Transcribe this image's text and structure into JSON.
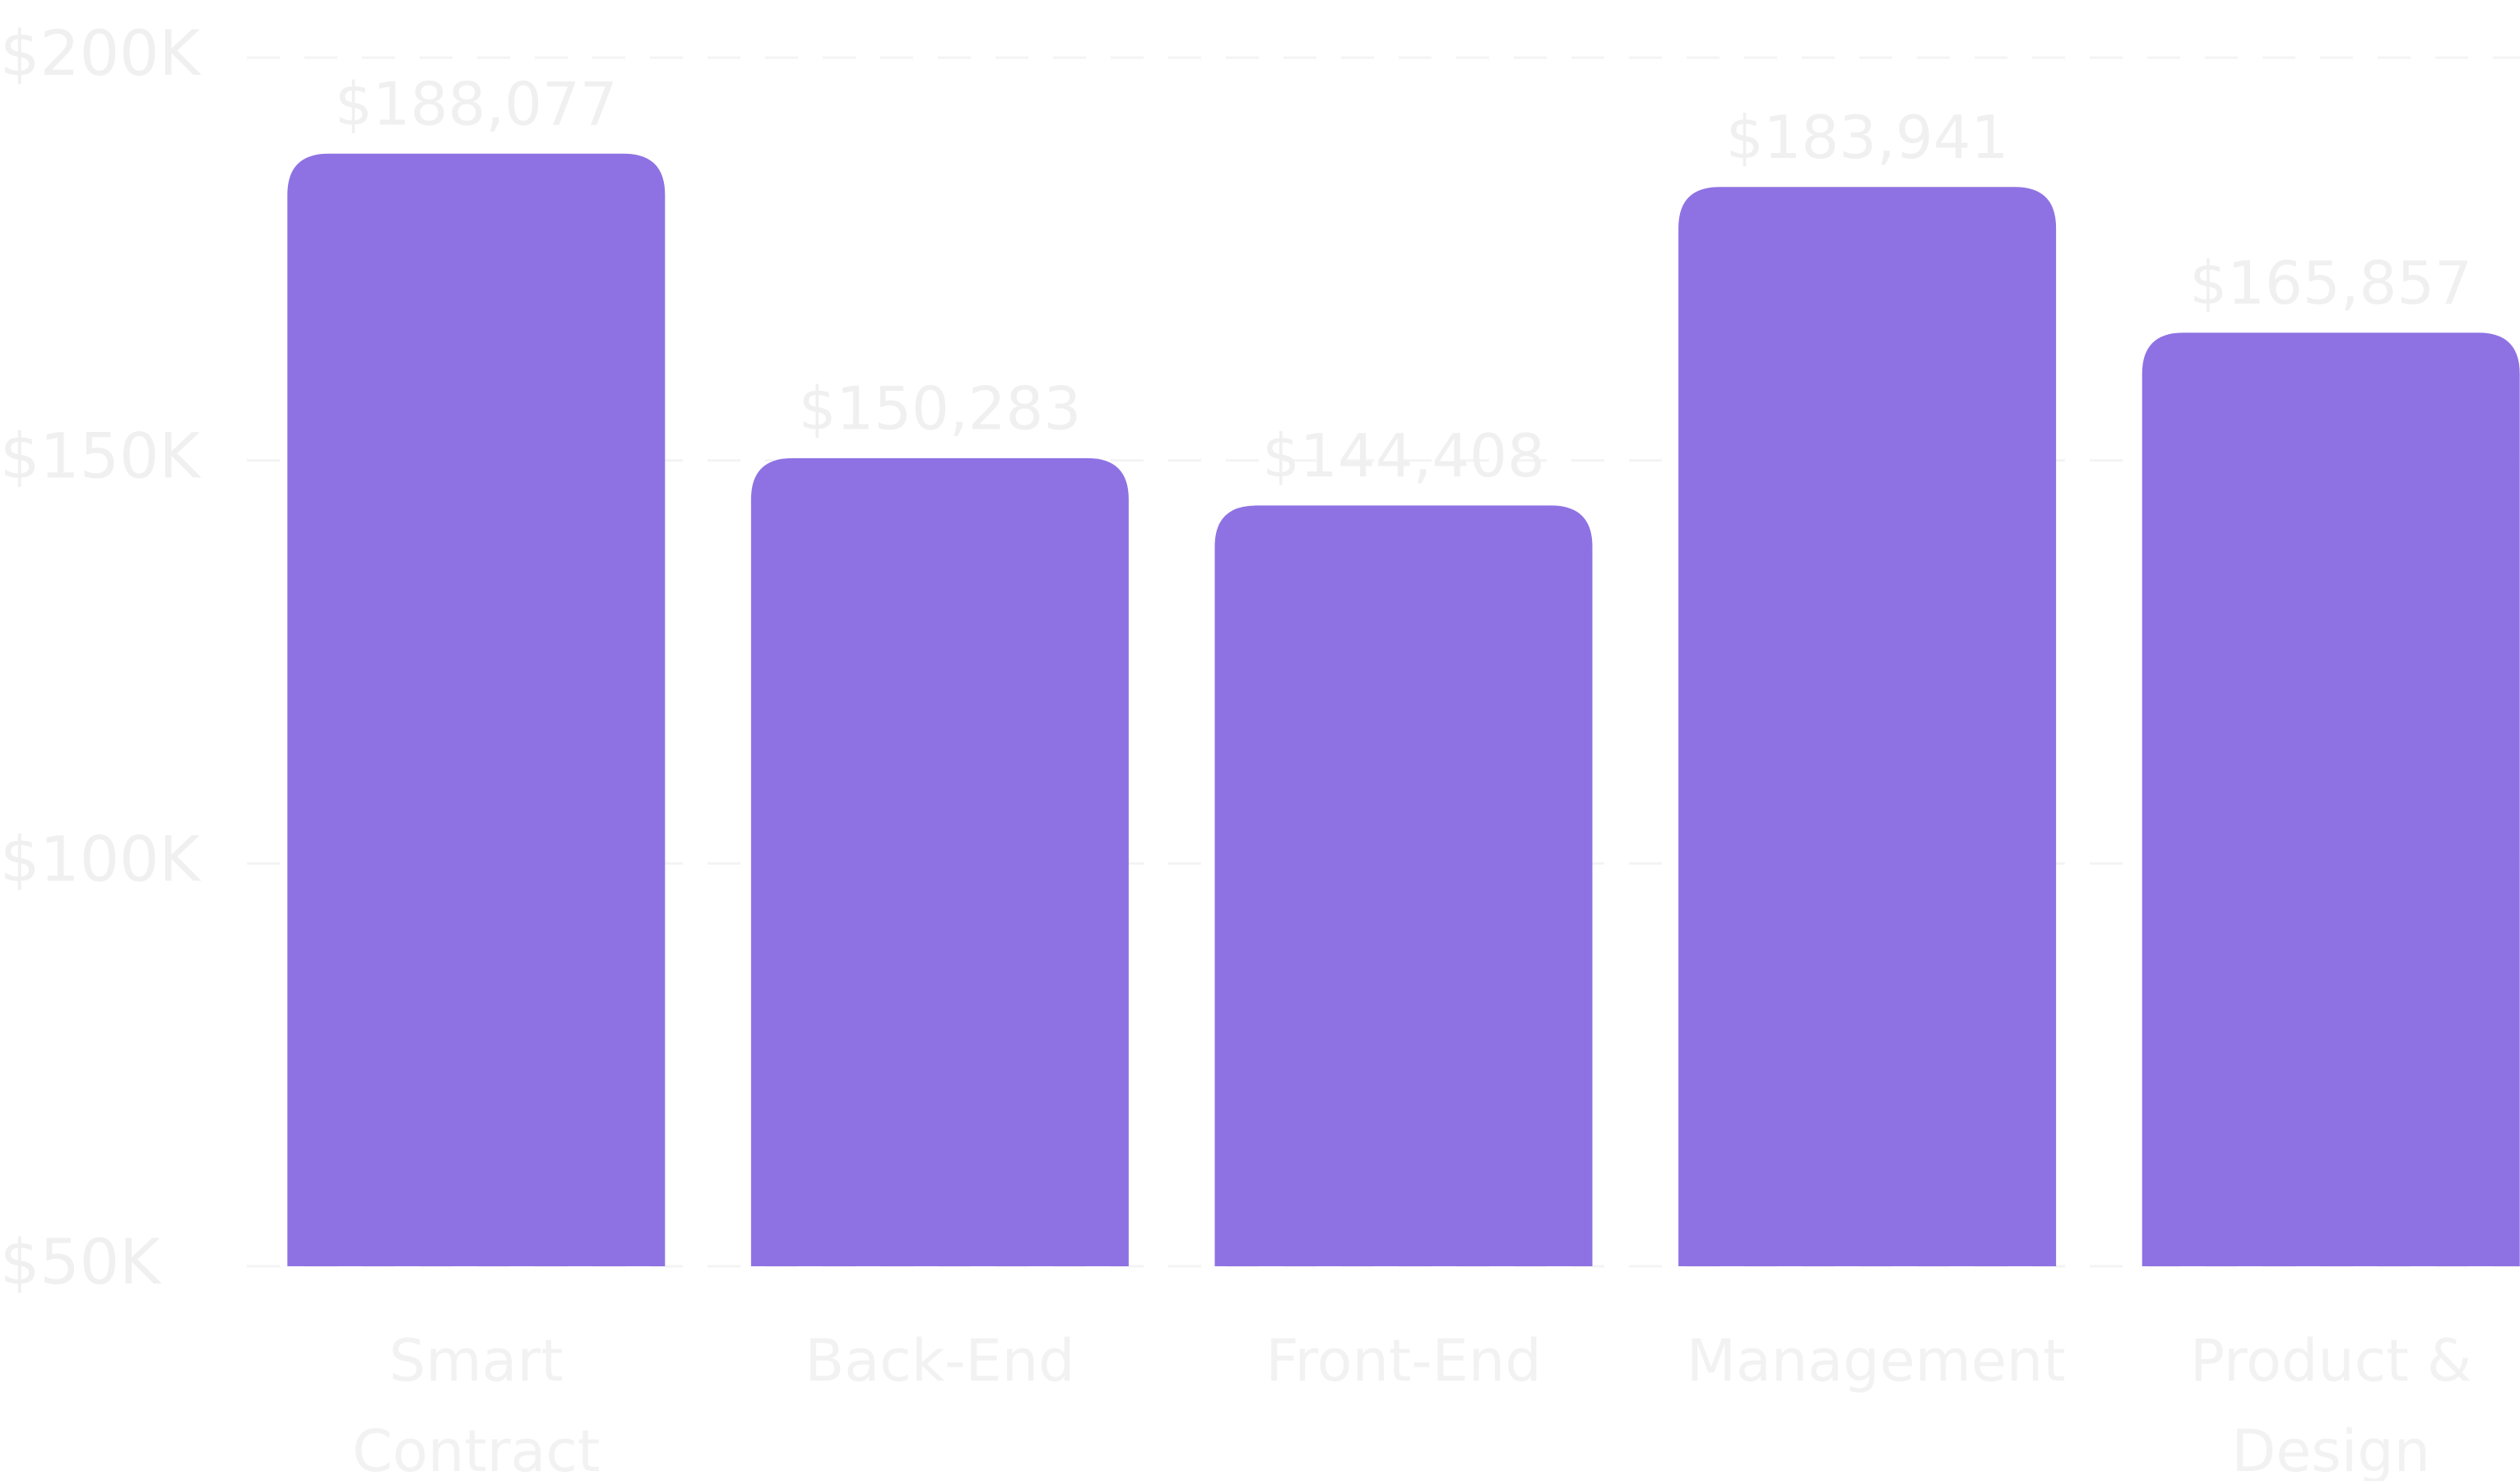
{
  "chart_data": {
    "type": "bar",
    "categories": [
      "Smart Contract",
      "Back-End",
      "Front-End",
      "Management",
      "Product & Design"
    ],
    "values": [
      188077,
      150283,
      144408,
      183941,
      165857
    ],
    "value_labels": [
      "$188,077",
      "$150,283",
      "$144,408",
      "$183,941",
      "$165,857"
    ],
    "color": "#8e72e3",
    "ylim": [
      50000,
      200000
    ],
    "yticks": [
      {
        "value": 50000,
        "label": "$50K"
      },
      {
        "value": 100000,
        "label": "$100K"
      },
      {
        "value": 150000,
        "label": "$150K"
      },
      {
        "value": 200000,
        "label": "$200K"
      }
    ],
    "grid": true
  }
}
